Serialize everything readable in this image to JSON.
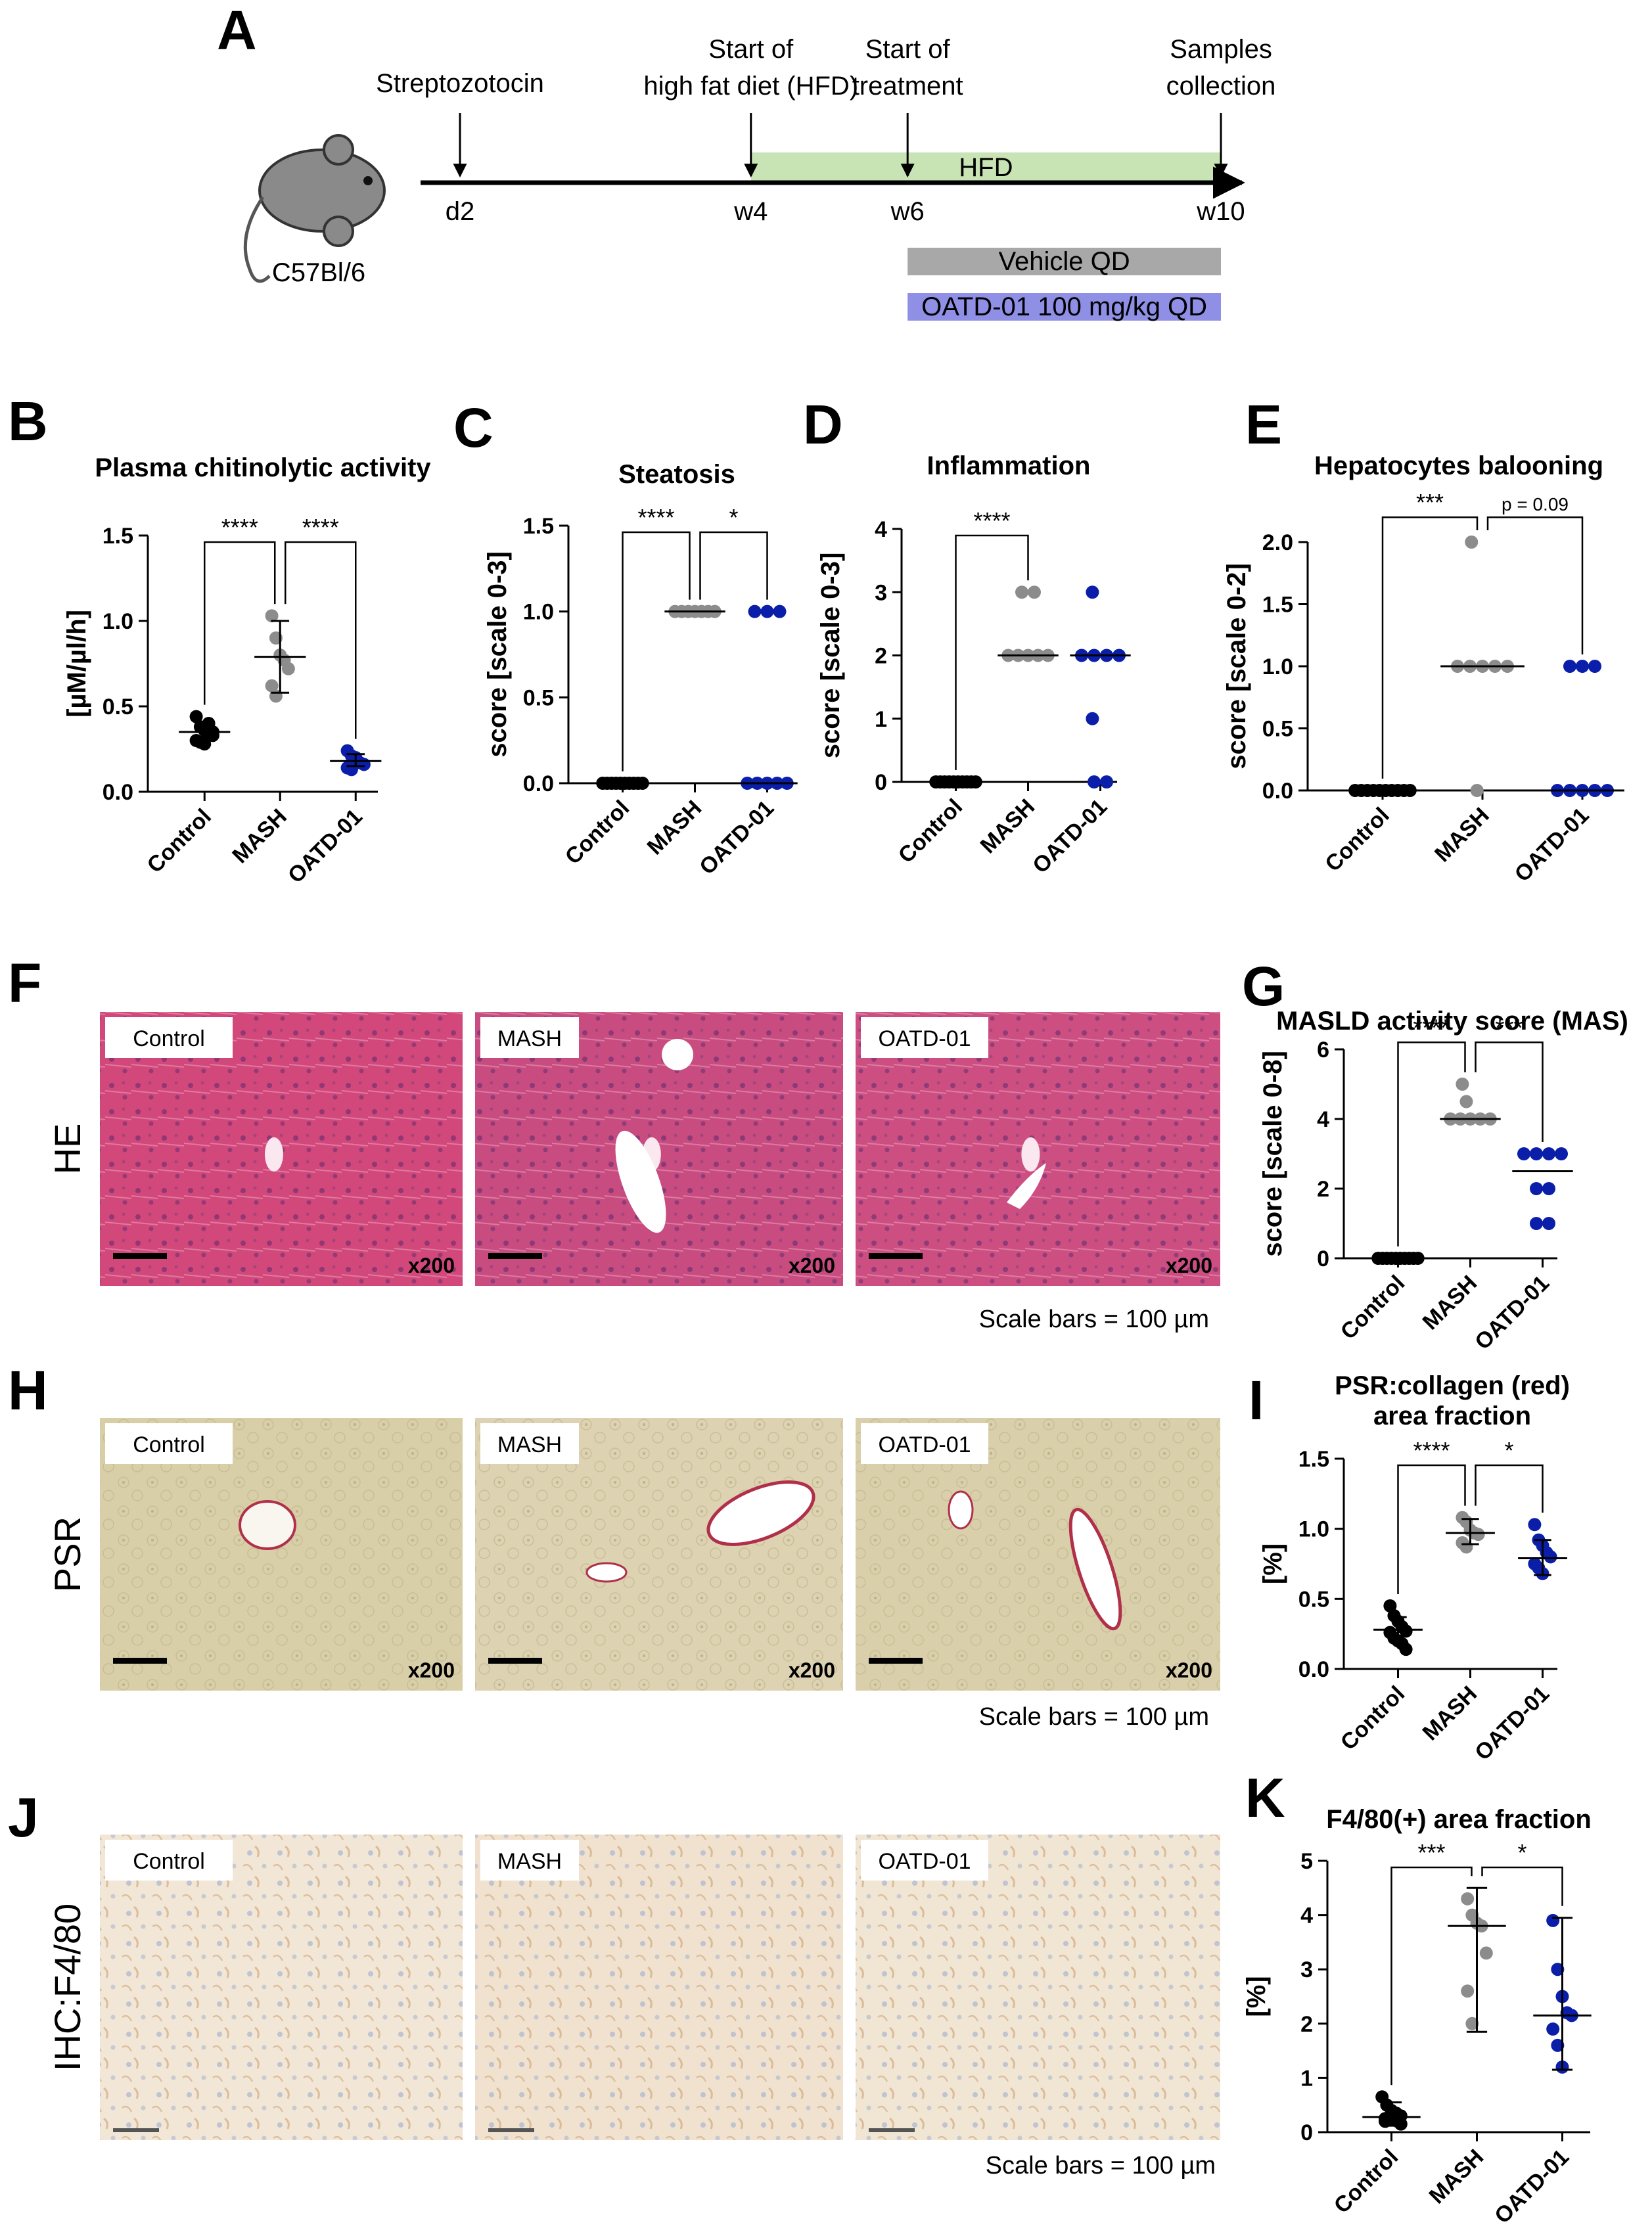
{
  "timeline": {
    "panel_label": "A",
    "mouse_label": "C57Bl/6",
    "events": [
      {
        "lines": [
          "Streptozotocin"
        ],
        "day": 2
      },
      {
        "lines": [
          "Start of",
          "high fat diet (HFD)"
        ],
        "day": 28
      },
      {
        "lines": [
          "Start of",
          "treatment"
        ],
        "day": 42
      },
      {
        "lines": [
          "Samples",
          "collection"
        ],
        "day": 70
      }
    ],
    "ticks": [
      {
        "label": "d2",
        "day": 2
      },
      {
        "label": "w4",
        "day": 28
      },
      {
        "label": "w6",
        "day": 42
      },
      {
        "label": "w10",
        "day": 70
      }
    ],
    "bars": [
      {
        "label": "HFD",
        "start_day": 28,
        "end_day": 70,
        "color": "#c8e4b4"
      },
      {
        "label": "Vehicle QD",
        "start_day": 42,
        "end_day": 70,
        "color": "#a8a8a8"
      },
      {
        "label": "OATD-01 100 mg/kg QD",
        "start_day": 42,
        "end_day": 70,
        "color": "#8f8fe6"
      }
    ]
  },
  "colors": {
    "control": "#000000",
    "mash": "#8c8c8c",
    "oatd": "#0a1eaa"
  },
  "chart_data": [
    {
      "id": "B",
      "panel_label": "B",
      "type": "scatter",
      "title": "Plasma chitinolytic activity",
      "ylabel": "[µM/µl/h]",
      "ylim": [
        0,
        1.5
      ],
      "yticks": [
        0.0,
        0.5,
        1.0,
        1.5
      ],
      "tick_decimals": 1,
      "categories": [
        "Control",
        "MASH",
        "OATD-01"
      ],
      "series": [
        {
          "values": [
            0.44,
            0.38,
            0.36,
            0.34,
            0.33,
            0.3,
            0.29,
            0.28,
            0.4,
            0.35
          ],
          "mean": 0.35,
          "err": [
            0.3,
            0.39
          ]
        },
        {
          "values": [
            1.03,
            0.9,
            0.8,
            0.77,
            0.72,
            0.62,
            0.56
          ],
          "mean": 0.79,
          "err": [
            0.58,
            1.0
          ]
        },
        {
          "values": [
            0.24,
            0.21,
            0.18,
            0.17,
            0.16,
            0.14,
            0.13,
            0.2
          ],
          "mean": 0.18,
          "err": [
            0.15,
            0.22
          ]
        }
      ],
      "style": "errorbar",
      "sig": [
        {
          "from": 0,
          "to": 1,
          "label": "****",
          "y": 1.3
        },
        {
          "from": 1,
          "to": 2,
          "label": "****",
          "y": 1.3
        }
      ]
    },
    {
      "id": "C",
      "panel_label": "C",
      "type": "scatter",
      "title": "Steatosis",
      "ylabel": "score [scale 0-3]",
      "ylim": [
        0,
        1.5
      ],
      "yticks": [
        0.0,
        0.5,
        1.0,
        1.5
      ],
      "tick_decimals": 1,
      "categories": [
        "Control",
        "MASH",
        "OATD-01"
      ],
      "series": [
        {
          "values": [
            0,
            0,
            0,
            0,
            0,
            0,
            0,
            0,
            0,
            0
          ],
          "median": 0
        },
        {
          "values": [
            1,
            1,
            1,
            1,
            1,
            1,
            1
          ],
          "median": 1
        },
        {
          "values": [
            1,
            1,
            1,
            0,
            0,
            0,
            0,
            0
          ],
          "median": 0
        }
      ],
      "style": "median",
      "sig": [
        {
          "from": 0,
          "to": 1,
          "label": "****",
          "y": 1.18
        },
        {
          "from": 1,
          "to": 2,
          "label": "*",
          "y": 1.18
        }
      ]
    },
    {
      "id": "D",
      "panel_label": "D",
      "type": "scatter",
      "title": "Inflammation",
      "ylabel": "score [scale 0-3]",
      "ylim": [
        0,
        4
      ],
      "yticks": [
        0,
        1,
        2,
        3,
        4
      ],
      "tick_decimals": 0,
      "categories": [
        "Control",
        "MASH",
        "OATD-01"
      ],
      "series": [
        {
          "values": [
            0,
            0,
            0,
            0,
            0,
            0,
            0,
            0,
            0,
            0
          ],
          "median": 0
        },
        {
          "values": [
            3,
            3,
            2,
            2,
            2,
            2,
            2
          ],
          "median": 2
        },
        {
          "values": [
            3,
            2,
            2,
            2,
            2,
            1,
            0,
            0
          ],
          "median": 2
        }
      ],
      "style": "median",
      "sig": [
        {
          "from": 0,
          "to": 1,
          "label": "****",
          "y": 3.7
        }
      ]
    },
    {
      "id": "E",
      "panel_label": "E",
      "type": "scatter",
      "title": "Hepatocytes balooning",
      "ylabel": "score [scale 0-2]",
      "ylim": [
        0,
        2.0
      ],
      "yticks": [
        0.0,
        0.5,
        1.0,
        1.5,
        2.0
      ],
      "tick_decimals": 1,
      "categories": [
        "Control",
        "MASH",
        "OATD-01"
      ],
      "series": [
        {
          "values": [
            0,
            0,
            0,
            0,
            0,
            0,
            0,
            0,
            0,
            0
          ],
          "median": 0
        },
        {
          "values": [
            2,
            1,
            1,
            1,
            1,
            1,
            0
          ],
          "median": 1
        },
        {
          "values": [
            1,
            1,
            1,
            0,
            0,
            0,
            0,
            0
          ],
          "median": 0
        }
      ],
      "style": "median",
      "sig": [
        {
          "from": 0,
          "to": 1,
          "label": "***",
          "y": 2.2
        },
        {
          "from": 1,
          "to": 2,
          "label": "p = 0.09",
          "y": 2.2
        }
      ]
    },
    {
      "id": "G",
      "panel_label": "G",
      "type": "scatter",
      "title": "MASLD activity score (MAS)",
      "ylabel": "score [scale 0-8]",
      "ylim": [
        0,
        6
      ],
      "yticks": [
        0,
        2,
        4,
        6
      ],
      "tick_decimals": 0,
      "categories": [
        "Control",
        "MASH",
        "OATD-01"
      ],
      "series": [
        {
          "values": [
            0,
            0,
            0,
            0,
            0,
            0,
            0,
            0,
            0,
            0
          ],
          "median": 0
        },
        {
          "values": [
            5,
            4.5,
            4,
            4,
            4,
            4,
            4
          ],
          "median": 4
        },
        {
          "values": [
            3,
            3,
            3,
            3,
            2,
            2,
            1,
            1
          ],
          "median": 2.5
        }
      ],
      "style": "median",
      "sig": [
        {
          "from": 0,
          "to": 1,
          "label": "****",
          "y": 6.2
        },
        {
          "from": 1,
          "to": 2,
          "label": "***",
          "y": 6.2
        }
      ]
    },
    {
      "id": "I",
      "panel_label": "I",
      "type": "scatter",
      "title": [
        "PSR:collagen (red)",
        "area fraction"
      ],
      "ylabel": "[%]",
      "ylim": [
        0,
        1.5
      ],
      "yticks": [
        0.0,
        0.5,
        1.0,
        1.5
      ],
      "tick_decimals": 1,
      "categories": [
        "Control",
        "MASH",
        "OATD-01"
      ],
      "series": [
        {
          "values": [
            0.45,
            0.38,
            0.34,
            0.3,
            0.27,
            0.26,
            0.22,
            0.2,
            0.18,
            0.14
          ],
          "mean": 0.28,
          "err": [
            0.2,
            0.37
          ]
        },
        {
          "values": [
            1.08,
            1.05,
            0.99,
            0.97,
            0.96,
            0.9,
            0.87
          ],
          "mean": 0.97,
          "err": [
            0.89,
            1.07
          ]
        },
        {
          "values": [
            1.03,
            0.92,
            0.88,
            0.83,
            0.8,
            0.75,
            0.72,
            0.68
          ],
          "mean": 0.79,
          "err": [
            0.67,
            0.92
          ]
        }
      ],
      "style": "errorbar",
      "sig": [
        {
          "from": 0,
          "to": 1,
          "label": "****",
          "y": 1.34
        },
        {
          "from": 1,
          "to": 2,
          "label": "*",
          "y": 1.34
        }
      ]
    },
    {
      "id": "K",
      "panel_label": "K",
      "type": "scatter",
      "title": "F4/80(+) area fraction",
      "ylabel": "[%]",
      "ylim": [
        0,
        5
      ],
      "yticks": [
        0,
        1,
        2,
        3,
        4,
        5
      ],
      "tick_decimals": 0,
      "categories": [
        "Control",
        "MASH",
        "OATD-01"
      ],
      "series": [
        {
          "values": [
            0.65,
            0.5,
            0.4,
            0.35,
            0.3,
            0.25,
            0.25,
            0.2,
            0.2,
            0.15
          ],
          "median": 0.28,
          "err": [
            0.12,
            0.55
          ]
        },
        {
          "values": [
            4.3,
            4.0,
            3.85,
            3.8,
            3.3,
            2.6,
            2.0
          ],
          "median": 3.8,
          "err": [
            1.85,
            4.5
          ]
        },
        {
          "values": [
            3.9,
            3.0,
            2.5,
            2.2,
            2.15,
            1.9,
            1.6,
            1.2
          ],
          "median": 2.15,
          "err": [
            1.15,
            3.95
          ]
        }
      ],
      "style": "errorbar",
      "sig": [
        {
          "from": 0,
          "to": 1,
          "label": "***",
          "y": 4.75
        },
        {
          "from": 1,
          "to": 2,
          "label": "*",
          "y": 4.75
        }
      ]
    }
  ],
  "micrographs": {
    "rows": [
      {
        "panel_label": "F",
        "stain": "HE",
        "scale_text": "Scale bars = 100 µm",
        "images": [
          {
            "label": "Control",
            "mag": "x200"
          },
          {
            "label": "MASH",
            "mag": "x200"
          },
          {
            "label": "OATD-01",
            "mag": "x200"
          }
        ],
        "colors": [
          "#d2487a",
          "#c84c80",
          "#cd4f82"
        ]
      },
      {
        "panel_label": "H",
        "stain": "PSR",
        "scale_text": "Scale bars = 100 µm",
        "images": [
          {
            "label": "Control",
            "mag": "x200"
          },
          {
            "label": "MASH",
            "mag": "x200"
          },
          {
            "label": "OATD-01",
            "mag": "x200"
          }
        ],
        "colors": [
          "#d8cfa8",
          "#ddd3b2",
          "#d9d0ab"
        ]
      },
      {
        "panel_label": "J",
        "stain": "IHC:F4/80",
        "scale_text": "Scale bars = 100 µm",
        "images": [
          {
            "label": "Control",
            "mag": ""
          },
          {
            "label": "MASH",
            "mag": ""
          },
          {
            "label": "OATD-01",
            "mag": ""
          }
        ],
        "colors": [
          "#f2e6d6",
          "#f0e2cf",
          "#f1e5d4"
        ]
      }
    ]
  }
}
